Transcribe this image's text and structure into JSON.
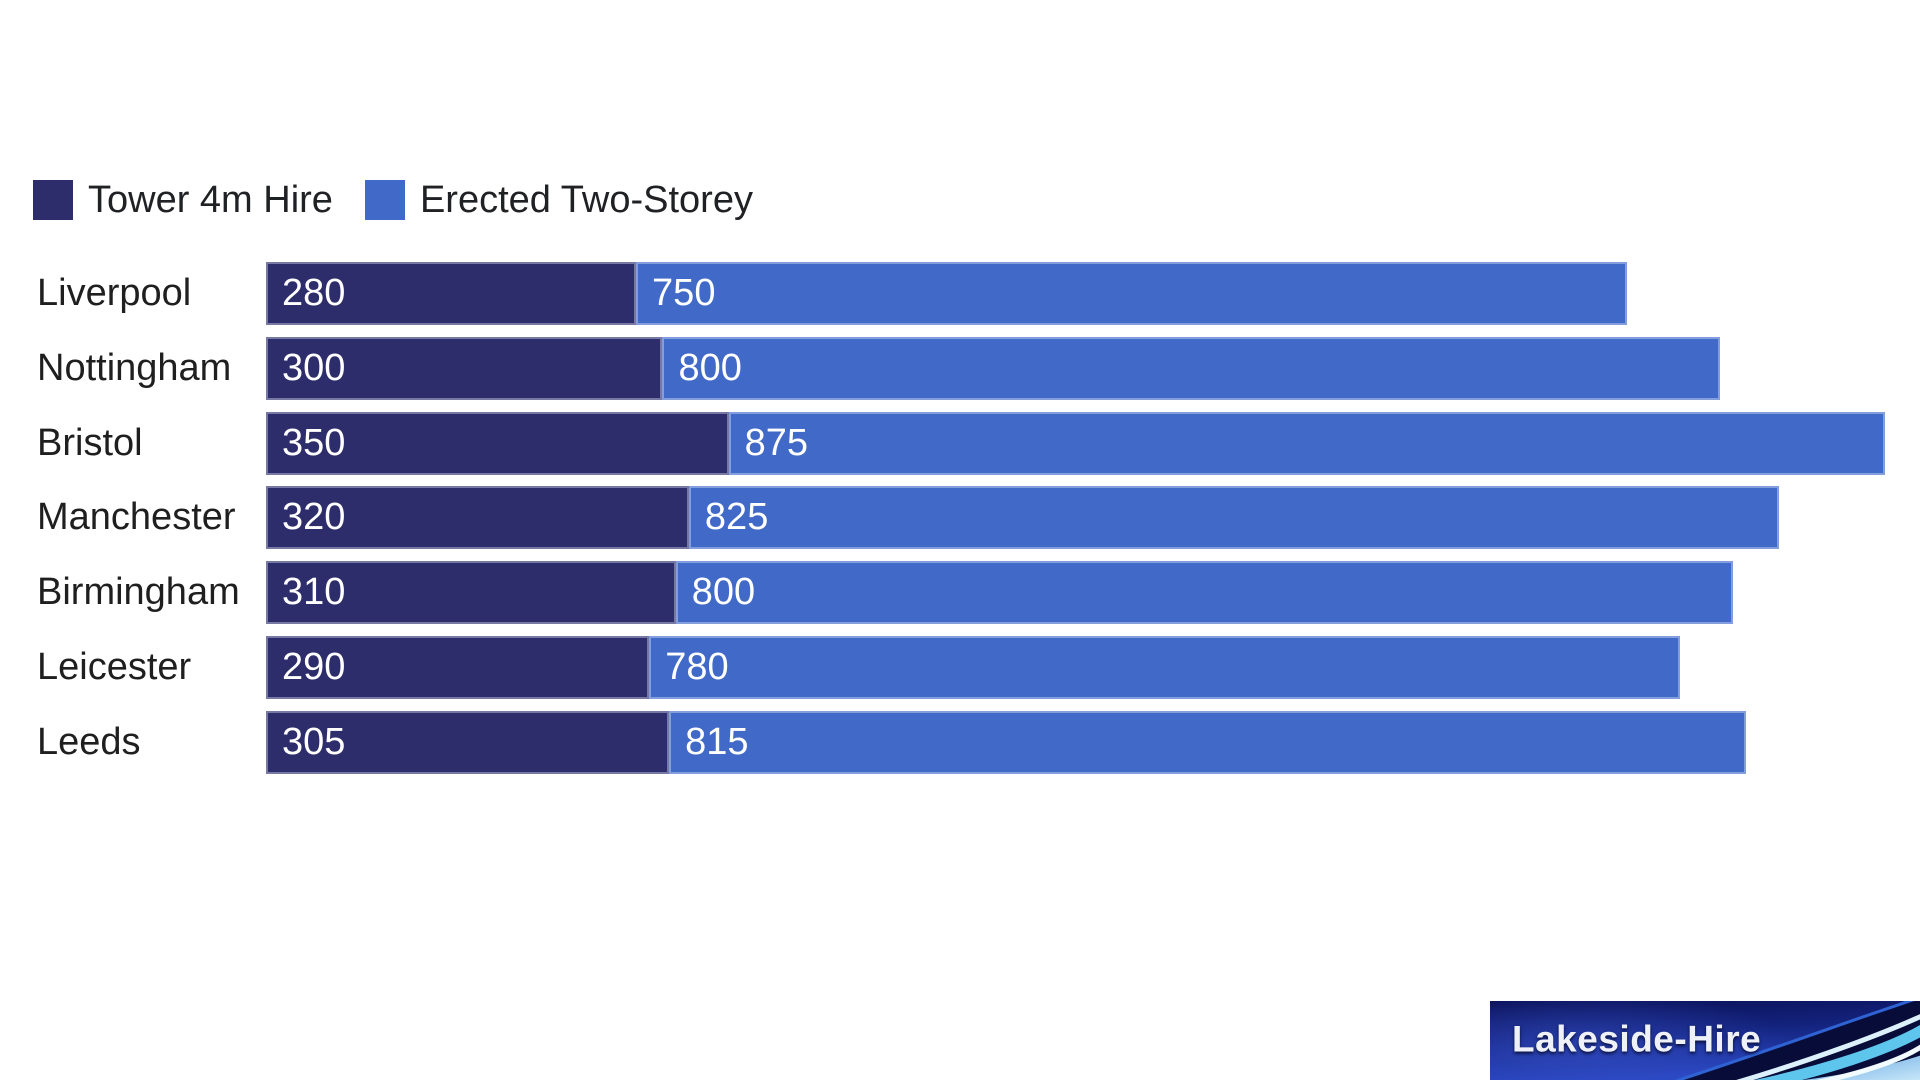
{
  "chart_data": {
    "type": "bar",
    "orientation": "horizontal",
    "stacked": true,
    "title": "",
    "axes_visible": false,
    "grid": false,
    "legend_position": "top-left",
    "value_labels": "inside-start-white",
    "categories": [
      "Liverpool",
      "Nottingham",
      "Bristol",
      "Manchester",
      "Birmingham",
      "Leicester",
      "Leeds"
    ],
    "series": [
      {
        "name": "Tower 4m Hire",
        "color": "#2e2d6b",
        "values": [
          280,
          300,
          350,
          320,
          310,
          290,
          305
        ]
      },
      {
        "name": "Erected Two-Storey",
        "color": "#4169c8",
        "values": [
          750,
          800,
          875,
          825,
          800,
          780,
          815
        ]
      }
    ]
  },
  "logo": {
    "text": "Lakeside-Hire",
    "background_color": "#101d72",
    "swoosh_colors": [
      "#2f63d4",
      "#ddf1fd",
      "#5ec5ec",
      "#f2fbff"
    ]
  },
  "colors": {
    "page_background": "#ffffff",
    "category_label": "#1f1f1f",
    "legend_label": "#202124",
    "value_label": "#ffffff"
  }
}
